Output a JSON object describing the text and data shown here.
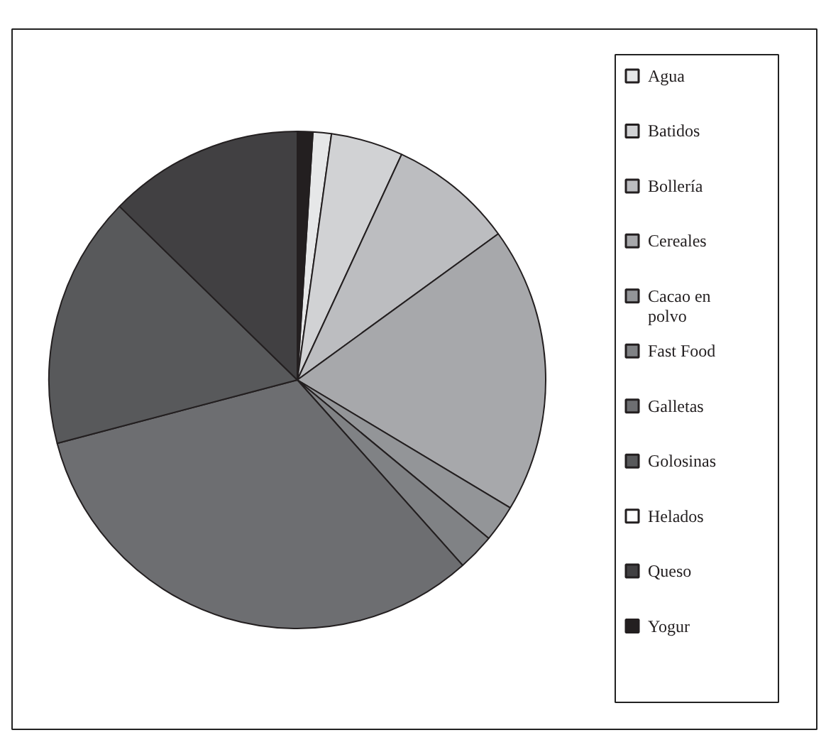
{
  "chart_data": {
    "type": "pie",
    "categories": [
      "Agua",
      "Batidos",
      "Bollería",
      "Cereales",
      "Cacao en polvo",
      "Fast Food",
      "Galletas",
      "Golosinas",
      "Helados",
      "Queso",
      "Yogur"
    ],
    "values": [
      1.2,
      4.7,
      8.1,
      18.6,
      2.4,
      2.4,
      32.5,
      16.4,
      0,
      12.7,
      1.0
    ],
    "colors": [
      "#e6e7e8",
      "#d1d2d4",
      "#bcbdc0",
      "#a7a8ab",
      "#939598",
      "#808285",
      "#6d6e71",
      "#58595b",
      "#ffffff",
      "#414042",
      "#231f20"
    ],
    "legend": "right"
  }
}
